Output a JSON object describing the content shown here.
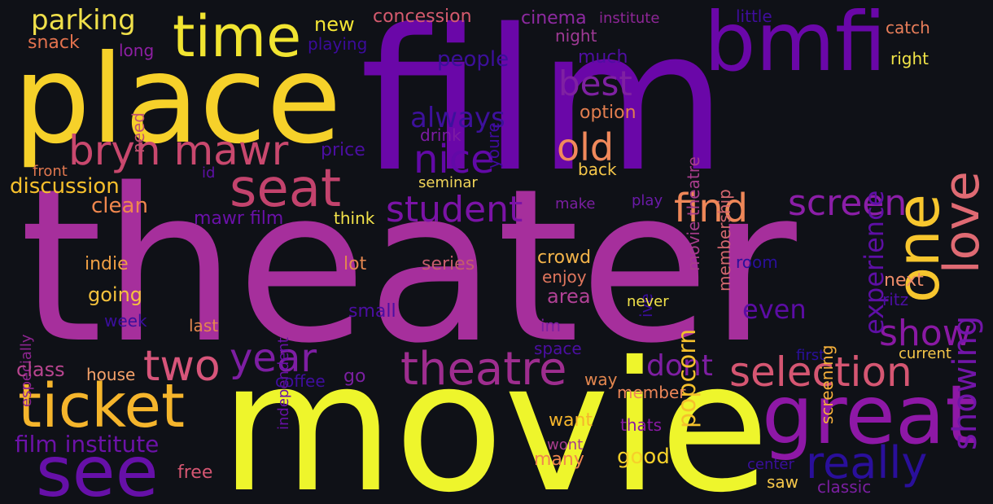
{
  "words": {
    "theater": {
      "text": "theater",
      "color": "#a62f9c"
    },
    "movie": {
      "text": "movie",
      "color": "#eef52c"
    },
    "film": {
      "text": "film",
      "color": "#6a07a8"
    },
    "place": {
      "text": "place",
      "color": "#f6d12a"
    },
    "bmfi": {
      "text": "bmfi",
      "color": "#6a07a8"
    },
    "time": {
      "text": "time",
      "color": "#f1e431"
    },
    "great": {
      "text": "great",
      "color": "#8e18a6"
    },
    "see": {
      "text": "see",
      "color": "#6610a8"
    },
    "ticket": {
      "text": "ticket",
      "color": "#f5b52c"
    },
    "one": {
      "text": "one",
      "color": "#f7c62e"
    },
    "love": {
      "text": "love",
      "color": "#df6a73"
    },
    "bryn_mawr": {
      "text": "bryn mawr",
      "color": "#c9486e"
    },
    "seat": {
      "text": "seat",
      "color": "#c3436d"
    },
    "theatre": {
      "text": "theatre",
      "color": "#9e2d8f"
    },
    "selection": {
      "text": "selection",
      "color": "#d55672"
    },
    "really": {
      "text": "really",
      "color": "#2a0f9b"
    },
    "two": {
      "text": "two",
      "color": "#d7557a"
    },
    "year": {
      "text": "year",
      "color": "#7e1ea3"
    },
    "student": {
      "text": "student",
      "color": "#7b13a6"
    },
    "screen": {
      "text": "screen",
      "color": "#8b1ea7"
    },
    "show": {
      "text": "show",
      "color": "#8a19a4"
    },
    "showing": {
      "text": "showing",
      "color": "#7215a8"
    },
    "best": {
      "text": "best",
      "color": "#7f21a2"
    },
    "nice": {
      "text": "nice",
      "color": "#6209a7"
    },
    "old": {
      "text": "old",
      "color": "#f1895b"
    },
    "find": {
      "text": "find",
      "color": "#ee8758"
    },
    "experience": {
      "text": "experience",
      "color": "#5e0fa5"
    },
    "dont": {
      "text": "dont",
      "color": "#7e1ea2"
    },
    "even": {
      "text": "even",
      "color": "#5c0ca5"
    },
    "parking": {
      "text": "parking",
      "color": "#f0e04a"
    },
    "always": {
      "text": "always",
      "color": "#3d119c"
    },
    "popcorn": {
      "text": "popcorn",
      "color": "#f5c12c"
    },
    "film_institute": {
      "text": "film institute",
      "color": "#6c12a8"
    },
    "discussion": {
      "text": "discussion",
      "color": "#f7c02c"
    },
    "clean": {
      "text": "clean",
      "color": "#f0874e"
    },
    "people": {
      "text": "people",
      "color": "#3c0f9b"
    },
    "new": {
      "text": "new",
      "color": "#f4e635"
    },
    "concession": {
      "text": "concession",
      "color": "#d45a6e"
    },
    "cinema": {
      "text": "cinema",
      "color": "#8e2aa1"
    },
    "institute": {
      "text": "institute",
      "color": "#8d2696"
    },
    "little": {
      "text": "little",
      "color": "#3f0d9d"
    },
    "catch": {
      "text": "catch",
      "color": "#e97e5a"
    },
    "right": {
      "text": "right",
      "color": "#f1e447"
    },
    "snack": {
      "text": "snack",
      "color": "#e3724e"
    },
    "long": {
      "text": "long",
      "color": "#8e1fa3"
    },
    "playing": {
      "text": "playing",
      "color": "#3b0b9b"
    },
    "night": {
      "text": "night",
      "color": "#9f3a95"
    },
    "much": {
      "text": "much",
      "color": "#4f0ea2"
    },
    "need": {
      "text": "need",
      "color": "#c05170"
    },
    "youre": {
      "text": "youre",
      "color": "#3f0a9e"
    },
    "drink": {
      "text": "drink",
      "color": "#7d1ba4"
    },
    "option": {
      "text": "option",
      "color": "#e27e4f"
    },
    "movie_theatre": {
      "text": "movie theatre",
      "color": "#a73d8c"
    },
    "membership": {
      "text": "membership",
      "color": "#d2676f"
    },
    "price": {
      "text": "price",
      "color": "#4b0ea2"
    },
    "front": {
      "text": "front",
      "color": "#e0774f"
    },
    "id": {
      "text": "id",
      "color": "#5d10a5"
    },
    "seminar": {
      "text": "seminar",
      "color": "#f1d559"
    },
    "back": {
      "text": "back",
      "color": "#f6c74a"
    },
    "make": {
      "text": "make",
      "color": "#7b1fa1"
    },
    "play": {
      "text": "play",
      "color": "#6a1aa8"
    },
    "mawr_film": {
      "text": "mawr film",
      "color": "#6a11a8"
    },
    "think": {
      "text": "think",
      "color": "#f3e34a"
    },
    "indie": {
      "text": "indie",
      "color": "#ef9f44"
    },
    "lot": {
      "text": "lot",
      "color": "#e4874f"
    },
    "series": {
      "text": "series",
      "color": "#c45c6d"
    },
    "crowd": {
      "text": "crowd",
      "color": "#f4b44a"
    },
    "enjoy": {
      "text": "enjoy",
      "color": "#e0765d"
    },
    "area": {
      "text": "area",
      "color": "#b14196"
    },
    "room": {
      "text": "room",
      "color": "#2a0f9b"
    },
    "next": {
      "text": "next",
      "color": "#ee8d6a"
    },
    "ritz": {
      "text": "ritz",
      "color": "#4b0ea2"
    },
    "ive": {
      "text": "ive",
      "color": "#3a0e9c"
    },
    "independent": {
      "text": "independent",
      "color": "#6a11a8"
    },
    "screening": {
      "text": "screening",
      "color": "#f6b03b"
    },
    "especially": {
      "text": "especially",
      "color": "#8d2590"
    },
    "going": {
      "text": "going",
      "color": "#f5c23d"
    },
    "small": {
      "text": "small",
      "color": "#4b0ea2"
    },
    "week": {
      "text": "week",
      "color": "#3a0e9c"
    },
    "last": {
      "text": "last",
      "color": "#e4874f"
    },
    "im": {
      "text": "im",
      "color": "#7b1fa1"
    },
    "never": {
      "text": "never",
      "color": "#f3e34a"
    },
    "space": {
      "text": "space",
      "color": "#4b0ea2"
    },
    "first": {
      "text": "first",
      "color": "#2a0f9b"
    },
    "current": {
      "text": "current",
      "color": "#f6c74a"
    },
    "class": {
      "text": "class",
      "color": "#b8458f"
    },
    "house": {
      "text": "house",
      "color": "#f5a26a"
    },
    "coffee": {
      "text": "coffee",
      "color": "#3f0d9d"
    },
    "go": {
      "text": "go",
      "color": "#7b1fa1"
    },
    "way": {
      "text": "way",
      "color": "#e4874f"
    },
    "member": {
      "text": "member",
      "color": "#ee8758"
    },
    "want": {
      "text": "want",
      "color": "#f5b52c"
    },
    "thats": {
      "text": "thats",
      "color": "#8a19a4"
    },
    "wont": {
      "text": "wont",
      "color": "#a73d8c"
    },
    "many": {
      "text": "many",
      "color": "#f0874e"
    },
    "good": {
      "text": "good",
      "color": "#f6d12a"
    },
    "free": {
      "text": "free",
      "color": "#d55672"
    },
    "center": {
      "text": "center",
      "color": "#3a0e9c"
    },
    "saw": {
      "text": "saw",
      "color": "#f6c74a"
    },
    "classic": {
      "text": "classic",
      "color": "#7b1fa1"
    }
  }
}
